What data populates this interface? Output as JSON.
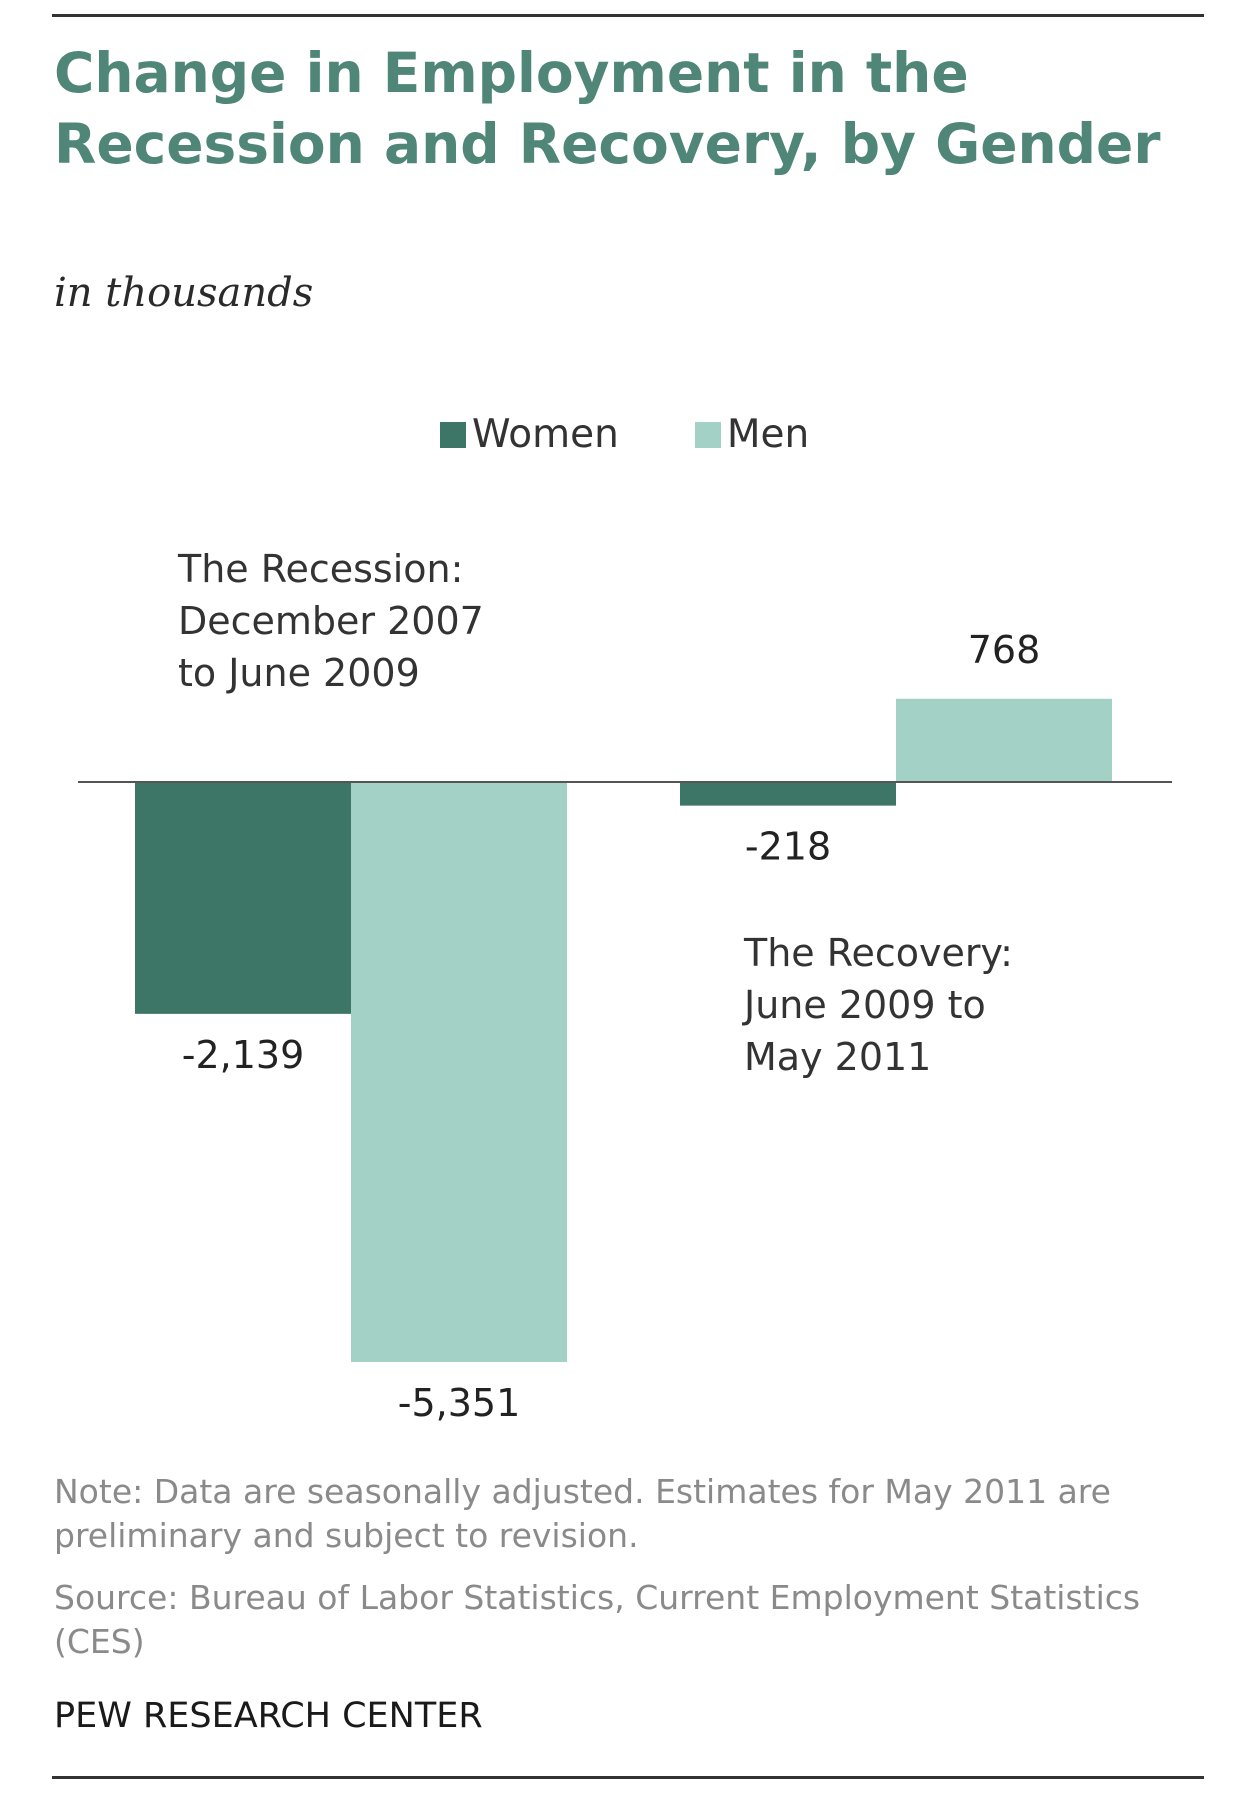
{
  "title": "Change in Employment in the Recession and Recovery, by Gender",
  "subtitle": "in thousands",
  "colors": {
    "women": "#3d7566",
    "men": "#a3d1c6",
    "title": "#4f8677",
    "baseline": "#555555"
  },
  "chart_data": {
    "type": "bar",
    "categories": [
      "The Recession:\nDecember 2007\nto June 2009",
      "The Recovery:\nJune 2009 to\nMay 2011"
    ],
    "category_labels": [
      [
        "The Recession:",
        "December 2007",
        "to June 2009"
      ],
      [
        "The Recovery:",
        "June 2009 to",
        "May 2011"
      ]
    ],
    "series": [
      {
        "name": "Women",
        "values": [
          -2139,
          -218
        ],
        "labels": [
          "-2,139",
          "-218"
        ]
      },
      {
        "name": "Men",
        "values": [
          -5351,
          768
        ],
        "labels": [
          "-5,351",
          "768"
        ]
      }
    ],
    "legend": {
      "position": "top",
      "entries": [
        "Women",
        "Men"
      ]
    },
    "grid": false,
    "ylim": [
      -5351,
      768
    ]
  },
  "note": "Note: Data are seasonally adjusted. Estimates for May 2011 are preliminary and subject to revision.",
  "source": "Source: Bureau of Labor Statistics, Current Employment Statistics (CES)",
  "brand": "PEW RESEARCH CENTER"
}
